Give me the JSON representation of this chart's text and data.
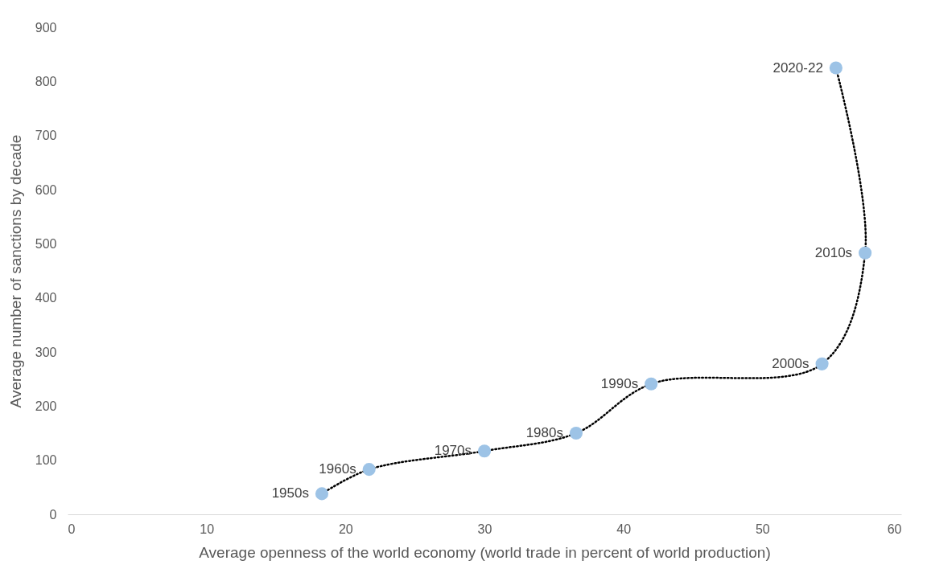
{
  "chart_data": {
    "type": "scatter",
    "xlabel": "Average openness of the world economy (world trade in percent of world production)",
    "ylabel": "Average number of sanctions by decade",
    "x": [
      18.3,
      21.7,
      30.0,
      36.6,
      42.0,
      54.3,
      57.4,
      55.3
    ],
    "series": [
      {
        "type": "line",
        "color": "#000000",
        "line_style": "dotted",
        "marker": "none",
        "values": [
          38,
          83,
          117,
          150,
          241,
          278,
          483,
          825
        ]
      },
      {
        "color": "#9dc3e6",
        "marker": "circle",
        "values": [
          38,
          83,
          117,
          150,
          241,
          278,
          483,
          825
        ]
      }
    ],
    "annotations": [
      {
        "text": "1950s",
        "x": 18.3,
        "y": 38
      },
      {
        "text": "1960s",
        "x": 21.7,
        "y": 83
      },
      {
        "text": "1970s",
        "x": 30.0,
        "y": 117
      },
      {
        "text": "1980s",
        "x": 36.6,
        "y": 150
      },
      {
        "text": "1990s",
        "x": 42.0,
        "y": 241
      },
      {
        "text": "2000s",
        "x": 54.3,
        "y": 278
      },
      {
        "text": "2010s",
        "x": 57.4,
        "y": 483
      },
      {
        "text": "2020-22",
        "x": 55.3,
        "y": 825
      }
    ],
    "xlim": [
      0,
      60
    ],
    "xticks": [
      0,
      10,
      20,
      30,
      40,
      50,
      60
    ],
    "ylim": [
      0,
      900
    ],
    "yticks": [
      0,
      100,
      200,
      300,
      400,
      500,
      600,
      700,
      800,
      900
    ],
    "grid": false
  }
}
